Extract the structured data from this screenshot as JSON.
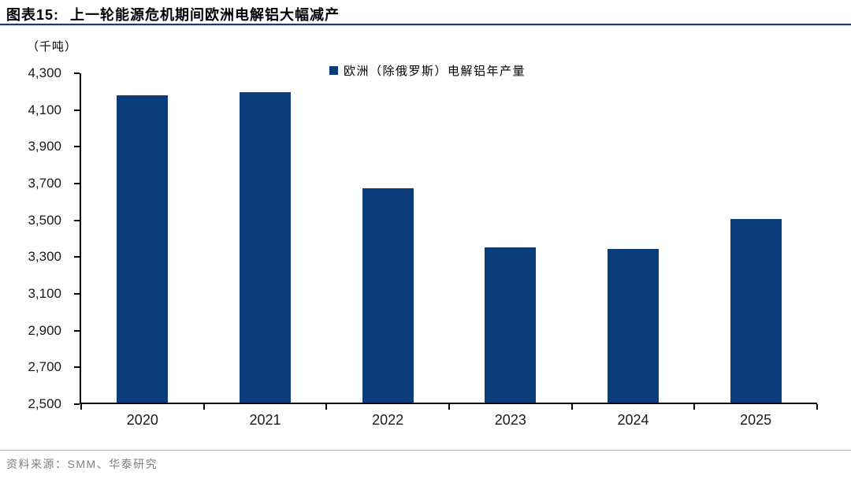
{
  "figure": {
    "label": "图表15:",
    "title": "上一轮能源危机期间欧洲电解铝大幅减产"
  },
  "unit_label": "（千吨）",
  "legend_label": "欧洲（除俄罗斯）电解铝年产量",
  "source": {
    "label": "资料来源：",
    "text": "SMM、华泰研究"
  },
  "colors": {
    "bar": "#0b3c7b",
    "title_rule": "#1f3864",
    "axis": "#000000",
    "source_text": "#808080",
    "footer_divider": "#9fb6d0"
  },
  "chart_data": {
    "type": "bar",
    "title": "上一轮能源危机期间欧洲电解铝大幅减产",
    "categories": [
      "2020",
      "2021",
      "2022",
      "2023",
      "2024",
      "2025"
    ],
    "values": [
      4170,
      4190,
      3665,
      3345,
      3335,
      3500
    ],
    "series_name": "欧洲（除俄罗斯）电解铝年产量",
    "unit": "千吨",
    "xlabel": "",
    "ylabel": "（千吨）",
    "ylim": [
      2500,
      4300
    ],
    "ytick_step": 200,
    "ytick_labels": [
      "4,300",
      "4,100",
      "3,900",
      "3,700",
      "3,500",
      "3,300",
      "3,100",
      "2,900",
      "2,700",
      "2,500"
    ],
    "grid": false,
    "legend_position": "top-center"
  }
}
